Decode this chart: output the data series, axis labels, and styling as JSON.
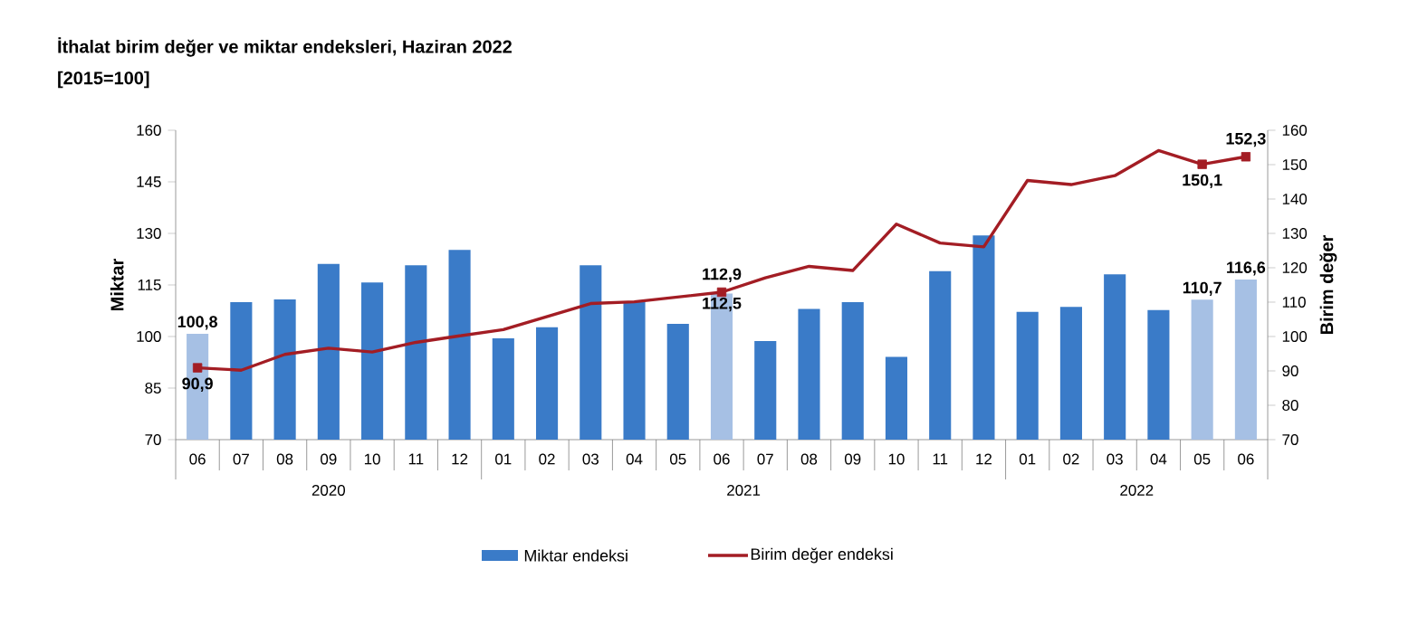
{
  "chart_data": {
    "type": "bar",
    "title": "İthalat birim değer ve miktar endeksleri, Haziran 2022",
    "subtitle": "[2015=100]",
    "ylabel": "Miktar",
    "y2label": "Birim değer",
    "categories": [
      "06",
      "07",
      "08",
      "09",
      "10",
      "11",
      "12",
      "01",
      "02",
      "03",
      "04",
      "05",
      "06",
      "07",
      "08",
      "09",
      "10",
      "11",
      "12",
      "01",
      "02",
      "03",
      "04",
      "05",
      "06"
    ],
    "annotations": [
      "2020",
      "2021",
      "2022"
    ],
    "ylim": [
      70,
      160
    ],
    "yticks": [
      70,
      85,
      100,
      115,
      130,
      145,
      160
    ],
    "y2lim": [
      70,
      160
    ],
    "y2ticks": [
      70,
      80,
      90,
      100,
      110,
      120,
      130,
      140,
      150,
      160
    ],
    "legend": "bottom",
    "series": [
      {
        "name": "Miktar endeksi",
        "color": "#3a7bc8",
        "colors": [
          "#a6c0e4",
          "#3a7bc8",
          "#3a7bc8",
          "#3a7bc8",
          "#3a7bc8",
          "#3a7bc8",
          "#3a7bc8",
          "#3a7bc8",
          "#3a7bc8",
          "#3a7bc8",
          "#3a7bc8",
          "#3a7bc8",
          "#a6c0e4",
          "#3a7bc8",
          "#3a7bc8",
          "#3a7bc8",
          "#3a7bc8",
          "#3a7bc8",
          "#3a7bc8",
          "#3a7bc8",
          "#3a7bc8",
          "#3a7bc8",
          "#3a7bc8",
          "#a6c0e4",
          "#a6c0e4"
        ],
        "values": [
          100.8,
          110.0,
          110.8,
          121.1,
          115.7,
          120.7,
          125.2,
          99.5,
          102.7,
          120.7,
          110.0,
          103.7,
          112.5,
          98.7,
          108.0,
          110.0,
          94.1,
          119.0,
          129.4,
          107.2,
          108.6,
          118.1,
          107.7,
          110.7,
          116.6
        ],
        "value_labels": [
          "100,8",
          null,
          null,
          null,
          null,
          null,
          null,
          null,
          null,
          null,
          null,
          null,
          "112,5",
          null,
          null,
          null,
          null,
          null,
          null,
          null,
          null,
          null,
          null,
          "110,7",
          "116,6"
        ]
      },
      {
        "name": "Birim değer endeksi",
        "type": "line",
        "axis": "y2",
        "color": "#a31d24",
        "values": [
          90.9,
          90.2,
          94.8,
          96.6,
          95.5,
          98.3,
          100.2,
          102.0,
          105.8,
          109.6,
          110.1,
          111.5,
          112.9,
          117.1,
          120.4,
          119.2,
          132.7,
          127.2,
          126.1,
          145.4,
          144.2,
          146.8,
          154.1,
          150.1,
          152.3
        ],
        "value_labels": [
          "90,9",
          null,
          null,
          null,
          null,
          null,
          null,
          null,
          null,
          null,
          null,
          null,
          "112,9",
          null,
          null,
          null,
          null,
          null,
          null,
          null,
          null,
          null,
          null,
          "150,1",
          "152,3"
        ]
      }
    ]
  }
}
